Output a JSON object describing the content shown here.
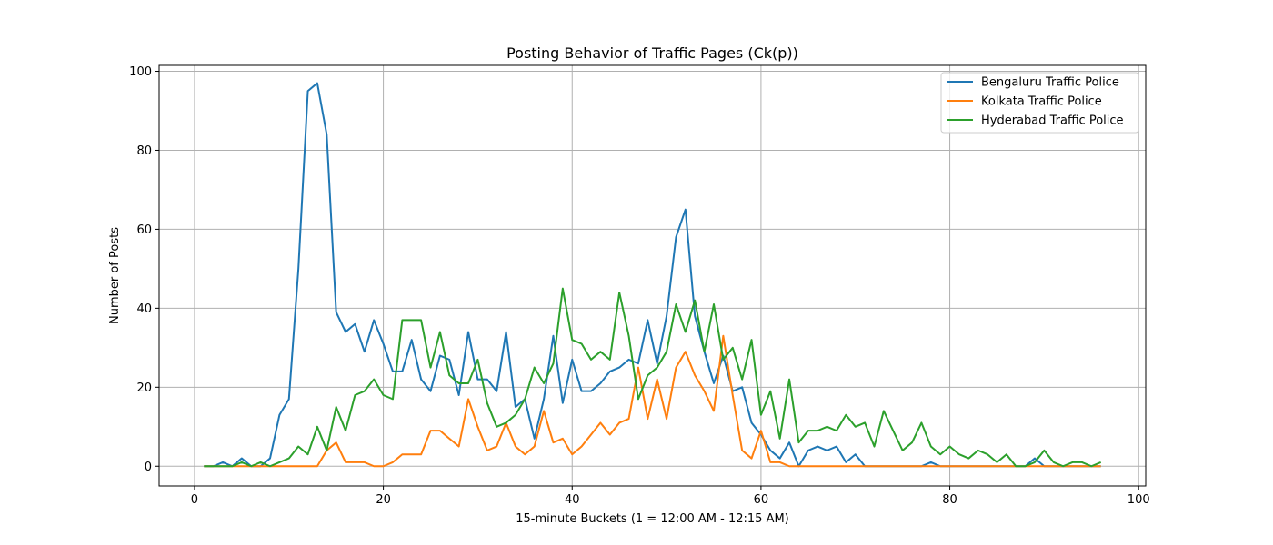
{
  "chart_data": {
    "type": "line",
    "title": "Posting Behavior of Traffic Pages (Ck(p))",
    "xlabel": "15-minute Buckets (1 = 12:00 AM - 12:15 AM)",
    "ylabel": "Number of Posts",
    "xlim": [
      -3.75,
      100.75
    ],
    "ylim": [
      -5,
      101.5
    ],
    "xticks": [
      0,
      20,
      40,
      60,
      80,
      100
    ],
    "yticks": [
      0,
      20,
      40,
      60,
      80,
      100
    ],
    "grid": true,
    "legend_position": "top-right",
    "x": [
      1,
      2,
      3,
      4,
      5,
      6,
      7,
      8,
      9,
      10,
      11,
      12,
      13,
      14,
      15,
      16,
      17,
      18,
      19,
      20,
      21,
      22,
      23,
      24,
      25,
      26,
      27,
      28,
      29,
      30,
      31,
      32,
      33,
      34,
      35,
      36,
      37,
      38,
      39,
      40,
      41,
      42,
      43,
      44,
      45,
      46,
      47,
      48,
      49,
      50,
      51,
      52,
      53,
      54,
      55,
      56,
      57,
      58,
      59,
      60,
      61,
      62,
      63,
      64,
      65,
      66,
      67,
      68,
      69,
      70,
      71,
      72,
      73,
      74,
      75,
      76,
      77,
      78,
      79,
      80,
      81,
      82,
      83,
      84,
      85,
      86,
      87,
      88,
      89,
      90,
      91,
      92,
      93,
      94,
      95,
      96
    ],
    "series": [
      {
        "name": "Bengaluru Traffic Police",
        "color": "#1f77b4",
        "values": [
          0,
          0,
          1,
          0,
          2,
          0,
          0,
          2,
          13,
          17,
          50,
          95,
          97,
          84,
          39,
          34,
          36,
          29,
          37,
          31,
          24,
          24,
          32,
          22,
          19,
          28,
          27,
          18,
          34,
          22,
          22,
          19,
          34,
          15,
          17,
          7,
          17,
          33,
          16,
          27,
          19,
          19,
          21,
          24,
          25,
          27,
          26,
          37,
          26,
          38,
          58,
          65,
          38,
          29,
          21,
          28,
          19,
          20,
          11,
          8,
          4,
          2,
          6,
          0,
          4,
          5,
          4,
          5,
          1,
          3,
          0,
          0,
          0,
          0,
          0,
          0,
          0,
          1,
          0,
          0,
          0,
          0,
          0,
          0,
          0,
          0,
          0,
          0,
          2,
          0,
          0,
          0,
          0,
          0,
          0,
          0
        ]
      },
      {
        "name": "Kolkata Traffic Police",
        "color": "#ff7f0e",
        "values": [
          0,
          0,
          0,
          0,
          0,
          0,
          0,
          0,
          0,
          0,
          0,
          0,
          0,
          4,
          6,
          1,
          1,
          1,
          0,
          0,
          1,
          3,
          3,
          3,
          9,
          9,
          7,
          5,
          17,
          10,
          4,
          5,
          11,
          5,
          3,
          5,
          14,
          6,
          7,
          3,
          5,
          8,
          11,
          8,
          11,
          12,
          25,
          12,
          22,
          12,
          25,
          29,
          23,
          19,
          14,
          33,
          18,
          4,
          2,
          9,
          1,
          1,
          0,
          0,
          0,
          0,
          0,
          0,
          0,
          0,
          0,
          0,
          0,
          0,
          0,
          0,
          0,
          0,
          0,
          0,
          0,
          0,
          0,
          0,
          0,
          0,
          0,
          0,
          0,
          0,
          0,
          0,
          0,
          0,
          0,
          0
        ]
      },
      {
        "name": "Hyderabad Traffic Police",
        "color": "#2ca02c",
        "values": [
          0,
          0,
          0,
          0,
          1,
          0,
          1,
          0,
          1,
          2,
          5,
          3,
          10,
          4,
          15,
          9,
          18,
          19,
          22,
          18,
          17,
          37,
          37,
          37,
          25,
          34,
          23,
          21,
          21,
          27,
          16,
          10,
          11,
          13,
          17,
          25,
          21,
          26,
          45,
          32,
          31,
          27,
          29,
          27,
          44,
          33,
          17,
          23,
          25,
          29,
          41,
          34,
          42,
          29,
          41,
          27,
          30,
          22,
          32,
          13,
          19,
          7,
          22,
          6,
          9,
          9,
          10,
          9,
          13,
          10,
          11,
          5,
          14,
          9,
          4,
          6,
          11,
          5,
          3,
          5,
          3,
          2,
          4,
          3,
          1,
          3,
          0,
          0,
          1,
          4,
          1,
          0,
          1,
          1,
          0,
          1
        ]
      }
    ]
  }
}
